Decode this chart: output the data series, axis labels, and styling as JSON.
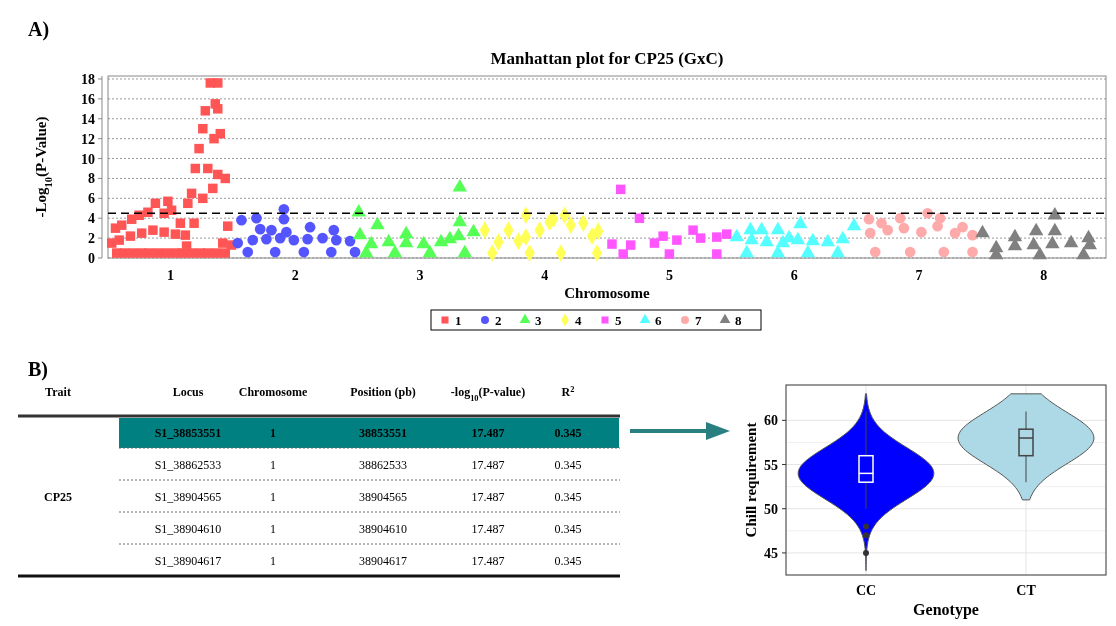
{
  "chart_data": [
    {
      "type": "scatter",
      "title": "Manhattan plot for CP25 (GxC)",
      "xlabel": "Chromosome",
      "ylabel": "-Log$_{10}$(P-Value)",
      "annotations": [
        "A)"
      ],
      "xlim": [
        0.5,
        8.5
      ],
      "xticks": [
        1,
        2,
        3,
        4,
        5,
        6,
        7,
        8
      ],
      "ylim": [
        0,
        18.3
      ],
      "yticks": [
        0,
        2,
        4,
        6,
        8,
        10,
        12,
        14,
        16,
        18
      ],
      "grid": "y",
      "legend": "bottom",
      "ref_lines": [
        {
          "axis": "y",
          "value": 4.5,
          "color": "#000000",
          "line_style": "dashed"
        }
      ],
      "series": [
        {
          "name": "1",
          "color": "#ff5555",
          "marker": "square",
          "x": [
            0.53,
            0.56,
            0.61,
            0.69,
            0.75,
            0.82,
            0.88,
            0.95,
            0.98,
            1.01,
            1.08,
            1.12,
            1.14,
            1.17,
            1.2,
            1.23,
            1.26,
            1.28,
            1.32,
            1.38,
            1.38,
            1.4,
            1.38,
            1.44,
            1.46,
            1.49,
            0.57,
            0.63,
            0.7,
            0.77,
            0.83,
            0.9,
            0.97,
            1.04,
            1.1,
            1.17,
            1.24,
            1.3,
            1.37,
            1.44,
            0.59,
            0.68,
            0.77,
            0.86,
            0.95,
            1.04,
            1.13,
            1.19,
            1.26,
            1.3,
            1.35,
            1.36,
            1.34,
            1.42
          ],
          "values": [
            1.5,
            3.0,
            3.3,
            3.9,
            4.3,
            4.6,
            5.5,
            4.5,
            5.7,
            4.8,
            3.5,
            2.3,
            5.5,
            6.5,
            9.0,
            11.0,
            13.0,
            14.8,
            17.6,
            17.6,
            15.0,
            12.5,
            8.4,
            8.0,
            3.2,
            1.3,
            0.5,
            0.5,
            0.5,
            0.5,
            0.5,
            0.5,
            0.5,
            0.5,
            0.5,
            0.5,
            0.5,
            0.5,
            0.5,
            0.5,
            1.8,
            2.2,
            2.5,
            2.8,
            2.6,
            2.4,
            1.2,
            3.5,
            6.0,
            9.0,
            12.0,
            15.5,
            7.0,
            1.5
          ]
        },
        {
          "name": "2",
          "color": "#5555ff",
          "marker": "circle",
          "x": [
            1.57,
            1.69,
            1.72,
            1.81,
            1.91,
            1.91,
            1.93,
            2.12,
            2.31,
            1.54,
            1.66,
            1.77,
            1.88,
            1.99,
            2.1,
            2.22,
            2.33,
            2.44,
            1.62,
            1.84,
            2.07,
            2.29,
            2.48
          ],
          "values": [
            3.8,
            4.0,
            2.9,
            2.8,
            4.9,
            3.9,
            2.6,
            3.1,
            2.8,
            1.5,
            1.8,
            1.9,
            2.0,
            1.8,
            1.9,
            2.0,
            1.8,
            1.7,
            0.6,
            0.6,
            0.6,
            0.6,
            0.6
          ]
        },
        {
          "name": "3",
          "color": "#55ff55",
          "marker": "triangle",
          "x": [
            2.51,
            2.52,
            2.66,
            2.89,
            3.24,
            3.32,
            3.32,
            3.43,
            2.61,
            2.75,
            2.89,
            3.03,
            3.17,
            3.31,
            2.57,
            2.8,
            3.08,
            3.36
          ],
          "values": [
            4.6,
            2.3,
            3.3,
            2.4,
            1.9,
            7.1,
            3.6,
            2.6,
            1.4,
            1.6,
            1.5,
            1.4,
            1.6,
            2.2,
            0.5,
            0.5,
            0.5,
            0.5
          ]
        },
        {
          "name": "4",
          "color": "#ffff55",
          "marker": "diamond",
          "x": [
            3.52,
            3.71,
            3.85,
            3.85,
            4.07,
            4.16,
            4.31,
            4.43,
            3.63,
            3.79,
            3.96,
            4.04,
            4.21,
            4.38,
            3.58,
            3.88,
            4.13,
            4.42
          ],
          "values": [
            2.8,
            2.8,
            4.3,
            2.1,
            3.9,
            4.3,
            3.5,
            2.7,
            1.6,
            1.7,
            2.8,
            3.6,
            3.3,
            2.2,
            0.5,
            0.5,
            0.5,
            0.5
          ]
        },
        {
          "name": "5",
          "color": "#ff55ff",
          "marker": "square",
          "x": [
            4.61,
            4.76,
            4.54,
            4.95,
            5.19,
            5.46,
            4.69,
            4.88,
            5.06,
            5.25,
            5.38,
            4.63,
            5.0,
            5.38
          ],
          "values": [
            6.9,
            4.0,
            1.4,
            2.2,
            2.8,
            2.4,
            1.3,
            1.5,
            1.8,
            2.0,
            2.1,
            0.4,
            0.4,
            0.4
          ]
        },
        {
          "name": "6",
          "color": "#55ffff",
          "marker": "triangle",
          "x": [
            5.65,
            5.74,
            5.87,
            5.96,
            6.05,
            6.48,
            5.54,
            5.66,
            5.78,
            5.91,
            6.03,
            6.15,
            6.27,
            6.39,
            5.62,
            5.87,
            6.11,
            6.35
          ],
          "values": [
            2.8,
            2.8,
            2.8,
            2.0,
            3.4,
            3.2,
            2.1,
            1.8,
            1.6,
            1.5,
            1.8,
            1.7,
            1.6,
            1.9,
            0.5,
            0.5,
            0.5,
            0.5
          ]
        },
        {
          "name": "7",
          "color": "#ffaaaa",
          "marker": "circle",
          "x": [
            6.6,
            6.7,
            6.85,
            7.07,
            7.17,
            7.35,
            6.61,
            6.75,
            6.88,
            7.02,
            7.15,
            7.29,
            7.43,
            6.65,
            6.93,
            7.2,
            7.43
          ],
          "values": [
            3.9,
            3.5,
            4.0,
            4.5,
            4.0,
            3.1,
            2.5,
            2.8,
            3.0,
            2.6,
            3.2,
            2.5,
            2.3,
            0.6,
            0.6,
            0.6,
            0.6
          ]
        },
        {
          "name": "8",
          "color": "#808080",
          "marker": "triangle",
          "x": [
            7.51,
            7.77,
            7.94,
            8.09,
            8.09,
            8.36,
            7.62,
            7.77,
            7.92,
            8.07,
            8.22,
            8.37,
            7.62,
            7.97,
            8.32
          ],
          "values": [
            2.5,
            2.1,
            2.7,
            2.7,
            4.3,
            2.0,
            1.0,
            1.2,
            1.3,
            1.4,
            1.5,
            1.3,
            0.3,
            0.3,
            0.3
          ]
        }
      ]
    },
    {
      "type": "other",
      "title": "B)",
      "annotations": [
        "Trait",
        "Locus",
        "Chromosome",
        "Position (pb)",
        "-log$_{10}$(P-value)",
        "R$^{2}$",
        "CP25",
        "S1_38853551",
        "1",
        "38853551",
        "17.487",
        "0.345",
        "S1_38862533",
        "1",
        "38862533",
        "17.487",
        "0.345",
        "S1_38904565",
        "1",
        "38904565",
        "17.487",
        "0.345",
        "S1_38904610",
        "1",
        "38904610",
        "17.487",
        "0.345",
        "S1_38904617",
        "1",
        "38904617",
        "17.487",
        "0.345"
      ]
    },
    {
      "type": "box",
      "categories": [
        "CC",
        "CT"
      ],
      "colors": [
        "#0000ff",
        "#add8e6"
      ],
      "xlabel": "Genotype",
      "ylabel": "Chill requirement",
      "ylim": [
        42.5,
        64
      ],
      "yticks": [
        45,
        50,
        55,
        60
      ],
      "grid": true,
      "boxes": [
        {
          "low": 50,
          "q1": 53,
          "median": 54,
          "q3": 56,
          "high": 61,
          "outliers": [
            48,
            47,
            45
          ]
        },
        {
          "low": 53,
          "q1": 56,
          "median": 58,
          "q3": 59,
          "high": 61
        }
      ]
    }
  ]
}
